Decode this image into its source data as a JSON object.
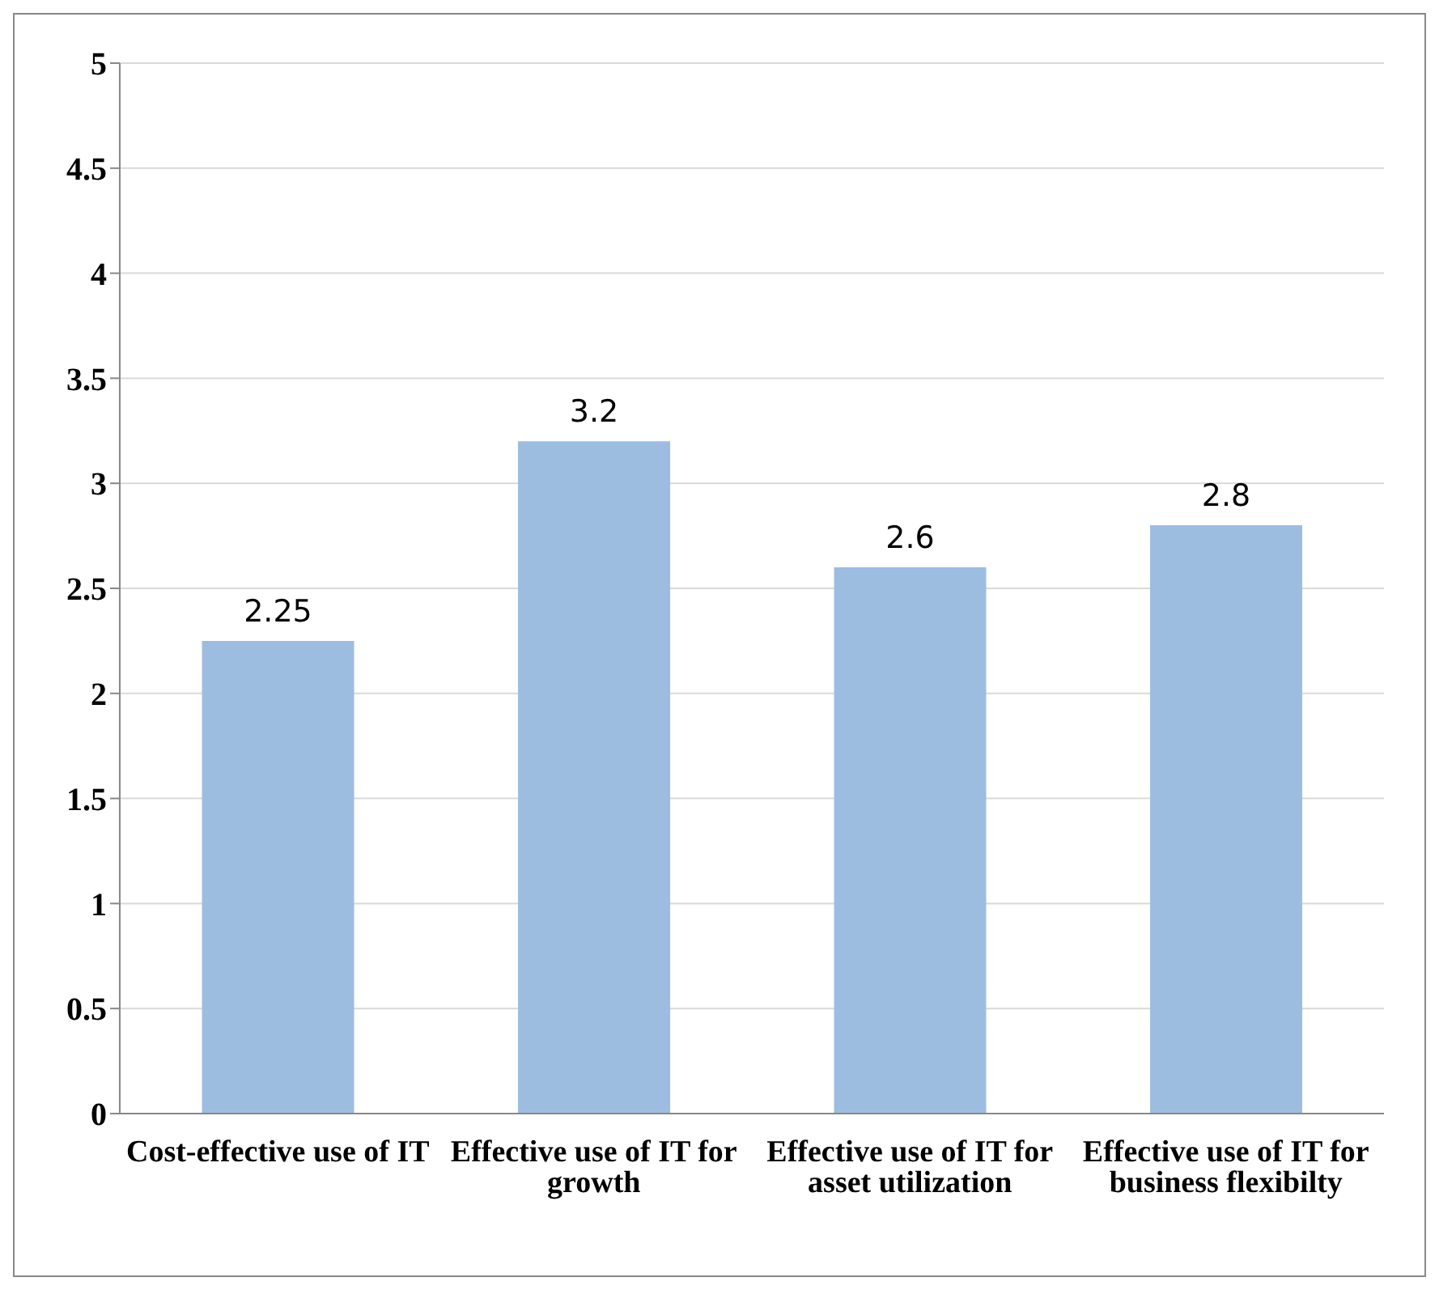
{
  "chart_data": {
    "type": "bar",
    "categories": [
      "Cost-effective use of IT",
      "Effective use of IT for growth",
      "Effective use of IT for asset utilization",
      "Effective use of IT for business flexibilty"
    ],
    "values": [
      2.25,
      3.2,
      2.6,
      2.8
    ],
    "color": "#9dbde0",
    "ylim": [
      0,
      5
    ],
    "yticks": [
      0,
      0.5,
      1,
      1.5,
      2,
      2.5,
      3,
      3.5,
      4,
      4.5,
      5
    ],
    "grid": "y",
    "data_labels": true
  }
}
